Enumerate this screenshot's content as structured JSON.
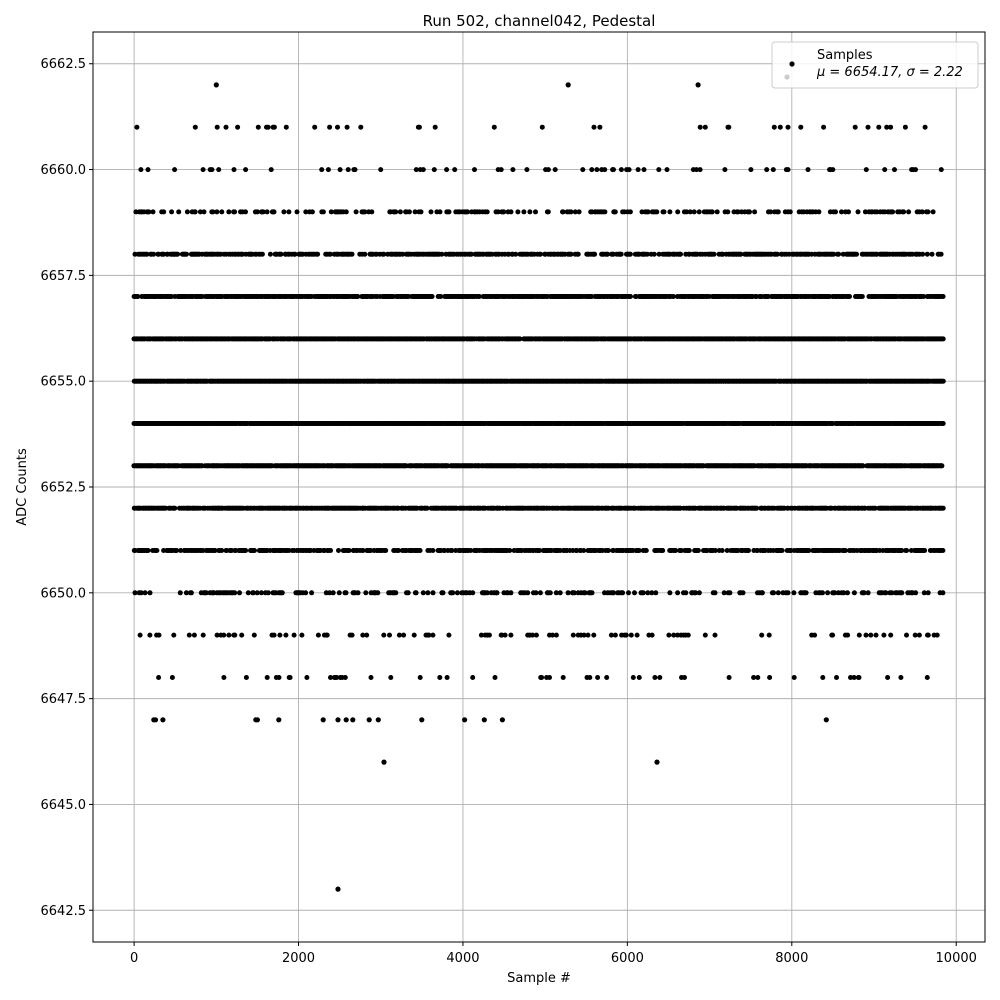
{
  "chart_data": {
    "type": "scatter",
    "title": "Run 502, channel042, Pedestal",
    "xlabel": "Sample #",
    "ylabel": "ADC Counts",
    "xlim": [
      -500,
      10350
    ],
    "ylim": [
      6641.75,
      6663.25
    ],
    "xticks": [
      0,
      2000,
      4000,
      6000,
      8000,
      10000
    ],
    "xtick_labels": [
      "0",
      "2000",
      "4000",
      "6000",
      "8000",
      "10000"
    ],
    "yticks": [
      6642.5,
      6645.0,
      6647.5,
      6650.0,
      6652.5,
      6655.0,
      6657.5,
      6660.0,
      6662.5
    ],
    "ytick_labels": [
      "6642.5",
      "6645.0",
      "6647.5",
      "6650.0",
      "6652.5",
      "6655.0",
      "6657.5",
      "6660.0",
      "6662.5"
    ],
    "grid": true,
    "legend": {
      "placement": "top-right",
      "entries": [
        "Samples",
        "μ = 6654.17, σ = 2.22"
      ]
    },
    "marker_color": "#000000",
    "series": [
      {
        "name": "Samples",
        "x_range": [
          0,
          9840
        ],
        "levels": [
          6643,
          6646,
          6647,
          6648,
          6649,
          6650,
          6651,
          6652,
          6653,
          6654,
          6655,
          6656,
          6657,
          6658,
          6659,
          6660,
          6661,
          6662
        ],
        "rare_points": [
          {
            "x": 2480,
            "y": 6643
          },
          {
            "x": 3040,
            "y": 6646
          },
          {
            "x": 6360,
            "y": 6646
          },
          {
            "x": 240,
            "y": 6647
          },
          {
            "x": 260,
            "y": 6647
          },
          {
            "x": 350,
            "y": 6647
          },
          {
            "x": 1480,
            "y": 6647
          },
          {
            "x": 1500,
            "y": 6647
          },
          {
            "x": 1760,
            "y": 6647
          },
          {
            "x": 2300,
            "y": 6647
          },
          {
            "x": 2480,
            "y": 6647
          },
          {
            "x": 2580,
            "y": 6647
          },
          {
            "x": 2660,
            "y": 6647
          },
          {
            "x": 2860,
            "y": 6647
          },
          {
            "x": 2970,
            "y": 6647
          },
          {
            "x": 3500,
            "y": 6647
          },
          {
            "x": 4020,
            "y": 6647
          },
          {
            "x": 4260,
            "y": 6647
          },
          {
            "x": 4480,
            "y": 6647
          },
          {
            "x": 8420,
            "y": 6647
          },
          {
            "x": 1000,
            "y": 6662
          },
          {
            "x": 5280,
            "y": 6662
          },
          {
            "x": 6860,
            "y": 6662
          }
        ],
        "level_density": {
          "6648": 0.07,
          "6649": 0.12,
          "6650": 0.28,
          "6651": 0.55,
          "6652": 0.75,
          "6653": 0.9,
          "6654": 0.97,
          "6655": 0.98,
          "6656": 0.95,
          "6657": 0.78,
          "6658": 0.55,
          "6659": 0.28,
          "6660": 0.09,
          "6661": 0.04
        }
      }
    ]
  }
}
